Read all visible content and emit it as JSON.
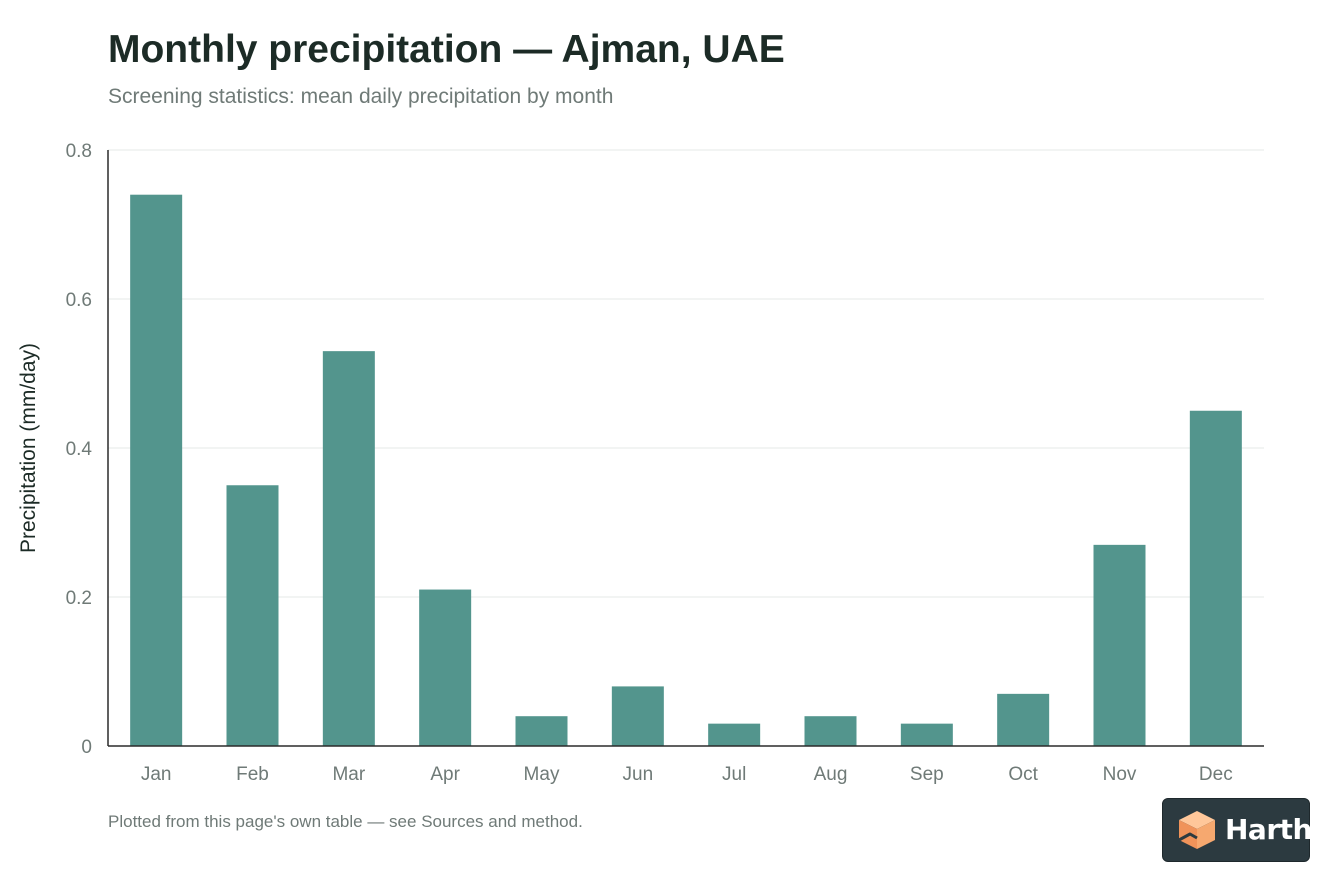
{
  "title": "Monthly precipitation — Ajman, UAE",
  "subtitle": "Screening statistics: mean daily precipitation by month",
  "footnote": "Plotted from this page's own table — see Sources and method.",
  "logo": {
    "text": "Harth",
    "icon": "harth-cube-logo-icon"
  },
  "colors": {
    "bar": "#53958d",
    "axis": "#2b2b2b",
    "grid": "#e6e8e7",
    "tick_label": "#6f7a77",
    "axis_label": "#1c2b26"
  },
  "chart_data": {
    "type": "bar",
    "categories": [
      "Jan",
      "Feb",
      "Mar",
      "Apr",
      "May",
      "Jun",
      "Jul",
      "Aug",
      "Sep",
      "Oct",
      "Nov",
      "Dec"
    ],
    "values": [
      0.74,
      0.35,
      0.53,
      0.21,
      0.04,
      0.08,
      0.03,
      0.04,
      0.03,
      0.07,
      0.27,
      0.45
    ],
    "ylabel": "Precipitation (mm/day)",
    "xlabel": "",
    "ylim": [
      0,
      0.8
    ],
    "yticks": [
      0,
      0.2,
      0.4,
      0.6,
      0.8
    ],
    "ytick_labels": [
      "0",
      "0.2",
      "0.4",
      "0.6",
      "0.8"
    ],
    "grid": true
  }
}
